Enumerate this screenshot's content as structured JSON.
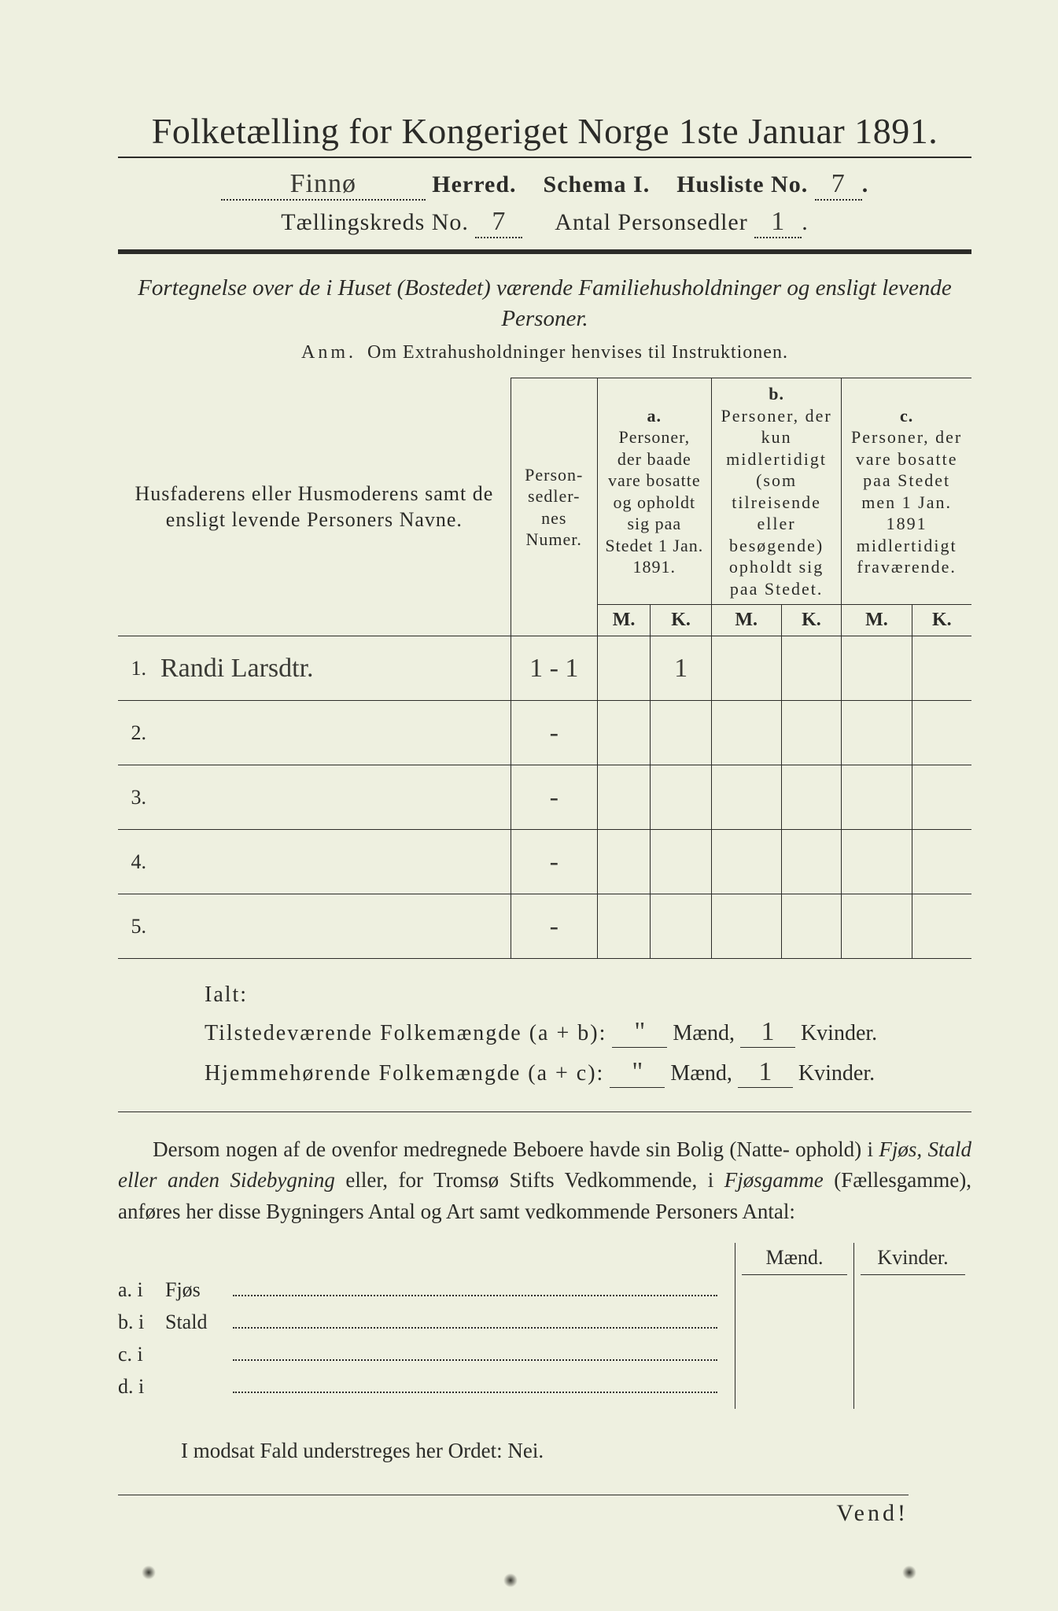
{
  "colors": {
    "paper": "#eef0e0",
    "ink": "#2b2b28",
    "frame": "#2a2a28",
    "handwriting": "#3a3a35"
  },
  "title": "Folketælling for Kongeriget Norge 1ste Januar 1891.",
  "line2": {
    "herred_hand": "Finnø",
    "herred_label": "Herred.",
    "schema": "Schema I.",
    "husliste_label": "Husliste No.",
    "husliste_no": "7"
  },
  "line3": {
    "kreds_label": "Tællingskreds No.",
    "kreds_no": "7",
    "antal_label": "Antal Personsedler",
    "antal_val": "1"
  },
  "fortegnelse": "Fortegnelse over de i Huset (Bostedet) værende Familiehusholdninger og ensligt levende Personer.",
  "anm_prefix": "Anm.",
  "anm_text": "Om Extrahusholdninger henvises til Instruktionen.",
  "table": {
    "headers": {
      "names": "Husfaderens eller Husmoderens samt de ensligt levende Personers Navne.",
      "numer": "Person-\nsedler-\nnes\nNumer.",
      "a_label": "a.",
      "a_text": "Personer, der baade vare bosatte og opholdt sig paa Stedet 1 Jan. 1891.",
      "b_label": "b.",
      "b_text": "Personer, der kun midlertidigt (som tilreisende eller besøgende) opholdt sig paa Stedet.",
      "c_label": "c.",
      "c_text": "Personer, der vare bosatte paa Stedet men 1 Jan. 1891 midlertidigt fraværende.",
      "m": "M.",
      "k": "K."
    },
    "rows": [
      {
        "n": "1.",
        "name": "Randi Larsdtr.",
        "numer": "1 - 1",
        "a_m": "",
        "a_k": "1",
        "b_m": "",
        "b_k": "",
        "c_m": "",
        "c_k": ""
      },
      {
        "n": "2.",
        "name": "",
        "numer": "-",
        "a_m": "",
        "a_k": "",
        "b_m": "",
        "b_k": "",
        "c_m": "",
        "c_k": ""
      },
      {
        "n": "3.",
        "name": "",
        "numer": "-",
        "a_m": "",
        "a_k": "",
        "b_m": "",
        "b_k": "",
        "c_m": "",
        "c_k": ""
      },
      {
        "n": "4.",
        "name": "",
        "numer": "-",
        "a_m": "",
        "a_k": "",
        "b_m": "",
        "b_k": "",
        "c_m": "",
        "c_k": ""
      },
      {
        "n": "5.",
        "name": "",
        "numer": "-",
        "a_m": "",
        "a_k": "",
        "b_m": "",
        "b_k": "",
        "c_m": "",
        "c_k": ""
      }
    ]
  },
  "ialt": {
    "label": "Ialt:",
    "line1_label": "Tilstedeværende Folkemængde (a + b):",
    "line2_label": "Hjemmehørende Folkemængde (a + c):",
    "maend": "Mænd,",
    "kvinder": "Kvinder.",
    "v1_m": "\"",
    "v1_k": "1",
    "v2_m": "\"",
    "v2_k": "1"
  },
  "dersom": {
    "p1a": "Dersom nogen af de ovenfor medregnede Beboere havde sin Bolig (Natte-\nophold) i ",
    "it1": "Fjøs, Stald eller anden Sidebygning",
    "p1b": " eller, for Tromsø Stifts Vedkommende, i ",
    "it2": "Fjøsgamme",
    "p1c": " (Fællesgamme), anføres her disse Bygningers Antal og Art samt vedkommende Personers Antal:"
  },
  "bygning": {
    "maend": "Mænd.",
    "kvinder": "Kvinder.",
    "rows": [
      {
        "lab": "a.  i",
        "txt": "Fjøs"
      },
      {
        "lab": "b.  i",
        "txt": "Stald"
      },
      {
        "lab": "c.  i",
        "txt": ""
      },
      {
        "lab": "d.  i",
        "txt": ""
      }
    ]
  },
  "modsat": "I modsat Fald understreges her Ordet: Nei.",
  "vend": "Vend!"
}
